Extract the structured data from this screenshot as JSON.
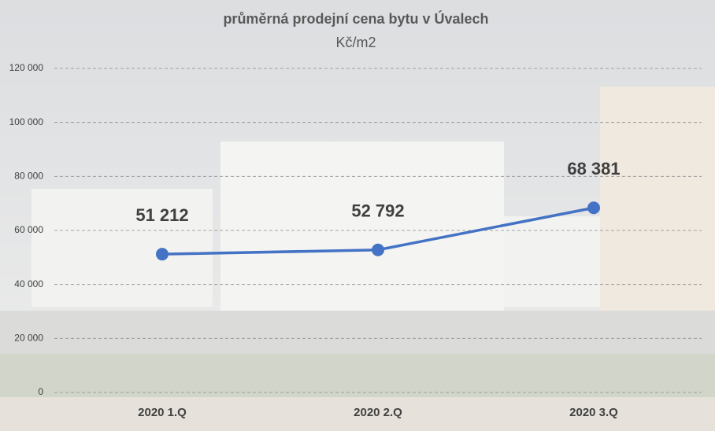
{
  "chart_data": {
    "type": "line",
    "title": "průměrná prodejní cena bytu v Úvalech",
    "subtitle": "Kč/m2",
    "categories": [
      "2020 1.Q",
      "2020 2.Q",
      "2020 3.Q"
    ],
    "values": [
      51212,
      52792,
      68381
    ],
    "value_labels": [
      "51 212",
      "52 792",
      "68 381"
    ],
    "color": "#4472c4",
    "ylim": [
      0,
      120000
    ],
    "yticks": [
      0,
      {
        "value": 20000,
        "label": "20 000"
      },
      {
        "value": 40000,
        "label": "40 000"
      },
      {
        "value": 60000,
        "label": "60 000"
      },
      {
        "value": 80000,
        "label": "80 000"
      },
      {
        "value": 100000,
        "label": "100 000"
      },
      {
        "value": 120000,
        "label": "120 000"
      }
    ],
    "grid": true
  }
}
